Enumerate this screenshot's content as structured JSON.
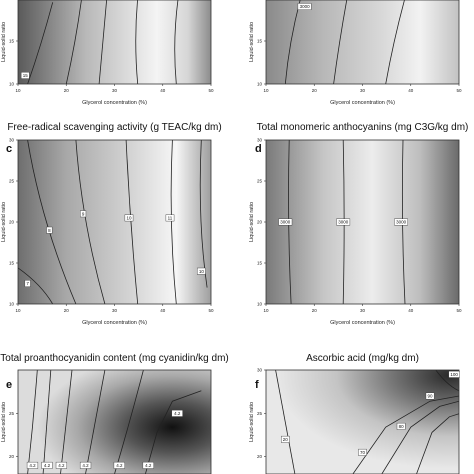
{
  "chart_data": [
    {
      "id": "a",
      "type": "contour",
      "letter": "",
      "title": "",
      "xlabel": "Glycerol concentration (%)",
      "ylabel": "Liquid-solid ratio",
      "xticks": [
        10,
        20,
        30,
        40,
        50
      ],
      "yticks": [
        10,
        15
      ],
      "xlim": [
        10,
        50
      ],
      "ylim": [
        10,
        20
      ],
      "contour_labels": [
        {
          "text": "15",
          "x": 11.5,
          "y": 11
        },
        {
          "text": "20",
          "x": 43.5,
          "y": 19.5
        }
      ]
    },
    {
      "id": "b",
      "type": "contour",
      "letter": "",
      "title": "",
      "xlabel": "Glycerol concentration (%)",
      "ylabel": "Liquid-solid ratio",
      "xticks": [
        10,
        20,
        30,
        40,
        50
      ],
      "yticks": [
        10,
        15
      ],
      "xlim": [
        10,
        50
      ],
      "ylim": [
        10,
        20
      ],
      "contour_labels": [
        {
          "text": "3000",
          "x": 18,
          "y": 19
        }
      ]
    },
    {
      "id": "c",
      "type": "contour",
      "letter": "c",
      "title": "Free-radical scavenging activity (g TEAC/kg dm)",
      "xlabel": "Glycerol concentration (%)",
      "ylabel": "Liquid-solid ratio",
      "xticks": [
        10,
        20,
        30,
        40,
        50
      ],
      "yticks": [
        10,
        15,
        20,
        25,
        30
      ],
      "xlim": [
        10,
        50
      ],
      "ylim": [
        10,
        30
      ],
      "contour_labels": [
        {
          "text": "7",
          "x": 12,
          "y": 12.5
        },
        {
          "text": "8",
          "x": 16.5,
          "y": 19
        },
        {
          "text": "9",
          "x": 23.5,
          "y": 21
        },
        {
          "text": "10",
          "x": 33,
          "y": 20.5
        },
        {
          "text": "11",
          "x": 41.5,
          "y": 20.5
        },
        {
          "text": "10",
          "x": 48,
          "y": 14
        }
      ]
    },
    {
      "id": "d",
      "type": "contour",
      "letter": "d",
      "title": "Total monomeric anthocyanins (mg C3G/kg dm)",
      "xlabel": "Glycerol concentration (%)",
      "ylabel": "Liquid-solid ratio",
      "xticks": [
        10,
        20,
        30,
        40,
        50
      ],
      "yticks": [
        10,
        15,
        20,
        25,
        30
      ],
      "xlim": [
        10,
        50
      ],
      "ylim": [
        10,
        30
      ],
      "contour_labels": [
        {
          "text": "3000",
          "x": 14,
          "y": 20
        },
        {
          "text": "3000",
          "x": 26,
          "y": 20
        },
        {
          "text": "3000",
          "x": 38,
          "y": 20
        }
      ]
    },
    {
      "id": "e",
      "type": "contour",
      "letter": "e",
      "title": "Total proanthocyanidin content (mg cyanidin/kg dm)",
      "xlabel": "",
      "ylabel": "Liquid-solid ratio",
      "xticks": [],
      "yticks": [
        20,
        25
      ],
      "xlim": [
        10,
        50
      ],
      "ylim": [
        18,
        30
      ],
      "contour_labels": [
        {
          "text": "4.2",
          "x": 13,
          "y": 19
        },
        {
          "text": "4.2",
          "x": 16,
          "y": 19
        },
        {
          "text": "4.2",
          "x": 19,
          "y": 19
        },
        {
          "text": "4.2",
          "x": 24,
          "y": 19
        },
        {
          "text": "4.2",
          "x": 31,
          "y": 19
        },
        {
          "text": "4.2",
          "x": 37,
          "y": 19
        },
        {
          "text": "4.2",
          "x": 43,
          "y": 25
        }
      ]
    },
    {
      "id": "f",
      "type": "contour",
      "letter": "f",
      "title": "Ascorbic acid (mg/kg dm)",
      "xlabel": "",
      "ylabel": "Liquid-solid ratio",
      "xticks": [],
      "yticks": [
        20,
        25,
        30
      ],
      "xlim": [
        10,
        50
      ],
      "ylim": [
        18,
        30
      ],
      "contour_labels": [
        {
          "text": "100",
          "x": 49,
          "y": 29.5
        },
        {
          "text": "90",
          "x": 44,
          "y": 27
        },
        {
          "text": "80",
          "x": 38,
          "y": 23.5
        },
        {
          "text": "70",
          "x": 30,
          "y": 20.5
        },
        {
          "text": "20",
          "x": 14,
          "y": 22
        }
      ]
    }
  ]
}
